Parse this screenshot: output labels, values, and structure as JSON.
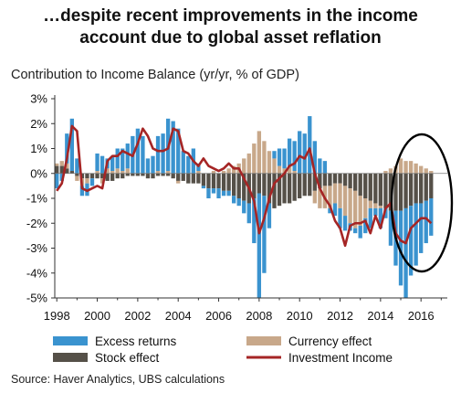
{
  "title_line1": "…despite recent improvements in the income",
  "title_line2": "account due to global asset reflation",
  "subtitle": "Contribution to Income Balance (yr/yr, % of GDP)",
  "source": "Source:  Haver Analytics, UBS calculations",
  "colors": {
    "excess_returns": "#3a93cf",
    "currency_effect": "#c8a88a",
    "stock_effect": "#555048",
    "investment_income": "#a52525",
    "ellipse": "#000000"
  },
  "chart_data": {
    "type": "bar",
    "stacked": true,
    "x_start": 1998.0,
    "x_step": 0.25,
    "ylim": [
      -5,
      3
    ],
    "yticks": [
      "3%",
      "2%",
      "1%",
      "0%",
      "-1%",
      "-2%",
      "-3%",
      "-4%",
      "-5%"
    ],
    "yticks_values": [
      3,
      2,
      1,
      0,
      -1,
      -2,
      -3,
      -4,
      -5
    ],
    "xticks": [
      "1998",
      "2000",
      "2002",
      "2004",
      "2006",
      "2008",
      "2010",
      "2012",
      "2014",
      "2016"
    ],
    "xticks_values": [
      1998,
      2000,
      2002,
      2004,
      2006,
      2008,
      2010,
      2012,
      2014,
      2016
    ],
    "legend": [
      "Excess returns",
      "Currency effect",
      "Stock effect",
      "Investment Income"
    ],
    "series": [
      {
        "name": "Excess returns",
        "kind": "bar",
        "values": [
          -0.6,
          -0.3,
          1.2,
          2.1,
          0.6,
          -0.4,
          -0.5,
          -0.3,
          0.7,
          0.7,
          0.4,
          0.6,
          0.8,
          0.9,
          1.0,
          1.5,
          1.8,
          1.5,
          0.6,
          0.7,
          1.4,
          1.6,
          2.1,
          2.1,
          1.8,
          0.9,
          0.7,
          1.0,
          0.3,
          -0.1,
          -0.4,
          -0.2,
          -0.4,
          -0.2,
          -0.2,
          -0.3,
          -0.3,
          -0.5,
          -0.8,
          -1.8,
          -4.2,
          -3.1,
          -1.0,
          0.3,
          0.7,
          0.8,
          1.1,
          1.2,
          1.7,
          1.6,
          2.3,
          1.3,
          0.6,
          0.5,
          -0.2,
          -0.5,
          -0.8,
          -0.6,
          -0.3,
          -0.2,
          -0.5,
          -0.6,
          -0.8,
          -0.3,
          -0.8,
          -0.4,
          -1.4,
          -2.2,
          -3.0,
          -3.6,
          -2.8,
          -2.5,
          -2.0,
          -1.7,
          -1.5
        ]
      },
      {
        "name": "Currency effect",
        "kind": "bar",
        "values": [
          0.1,
          0.2,
          0.2,
          0.0,
          -0.2,
          -0.3,
          -0.2,
          0.0,
          0.1,
          -0.2,
          0.2,
          0.1,
          0.2,
          0.1,
          0.2,
          0.0,
          0.0,
          0.0,
          0.0,
          0.0,
          0.1,
          0.0,
          0.1,
          0.0,
          -0.1,
          0.0,
          0.0,
          0.0,
          0.1,
          0.0,
          0.0,
          0.1,
          0.0,
          0.1,
          0.2,
          0.3,
          0.4,
          0.6,
          0.8,
          1.2,
          1.7,
          1.3,
          0.9,
          0.6,
          0.3,
          0.2,
          0.3,
          0.1,
          0.0,
          0.0,
          0.0,
          -0.5,
          -0.8,
          -0.9,
          -0.9,
          -0.8,
          -1.0,
          -1.2,
          -1.4,
          -1.5,
          -1.2,
          -0.8,
          -0.3,
          -0.2,
          -0.1,
          0.1,
          0.2,
          0.3,
          0.6,
          0.5,
          0.5,
          0.4,
          0.3,
          0.2,
          0.1
        ]
      },
      {
        "name": "Stock effect",
        "kind": "bar",
        "values": [
          0.3,
          0.3,
          0.2,
          0.1,
          -0.1,
          -0.2,
          -0.2,
          -0.2,
          -0.2,
          -0.2,
          -0.3,
          -0.3,
          -0.2,
          -0.2,
          -0.1,
          -0.1,
          -0.1,
          -0.1,
          -0.2,
          -0.2,
          -0.1,
          -0.1,
          -0.1,
          -0.2,
          -0.3,
          -0.3,
          -0.4,
          -0.4,
          -0.4,
          -0.5,
          -0.6,
          -0.6,
          -0.6,
          -0.7,
          -0.7,
          -0.9,
          -1.0,
          -1.1,
          -1.2,
          -1.0,
          -0.8,
          -0.9,
          -1.2,
          -1.4,
          -1.3,
          -1.2,
          -1.2,
          -1.1,
          -1.0,
          -0.9,
          -0.9,
          -0.7,
          -0.6,
          -0.5,
          -0.5,
          -0.4,
          -0.4,
          -0.5,
          -0.6,
          -0.7,
          -0.9,
          -1.0,
          -1.1,
          -1.2,
          -1.3,
          -1.4,
          -1.5,
          -1.5,
          -1.5,
          -1.4,
          -1.3,
          -1.2,
          -1.2,
          -1.1,
          -1.0
        ]
      },
      {
        "name": "Investment Income",
        "kind": "line",
        "values": [
          -0.7,
          -0.4,
          0.6,
          1.9,
          1.7,
          -0.6,
          -0.7,
          -0.6,
          -0.5,
          -0.6,
          0.5,
          0.7,
          0.7,
          0.9,
          0.8,
          0.7,
          1.2,
          1.8,
          1.5,
          1.0,
          0.9,
          0.9,
          1.0,
          1.8,
          1.7,
          0.9,
          0.8,
          0.5,
          0.3,
          0.6,
          0.3,
          0.2,
          0.1,
          0.2,
          0.4,
          0.2,
          0.2,
          -0.2,
          -0.6,
          -1.1,
          -2.4,
          -1.8,
          -1.0,
          -0.4,
          -0.2,
          0.0,
          0.3,
          0.4,
          0.7,
          0.6,
          1.0,
          0.0,
          -0.6,
          -1.0,
          -1.3,
          -1.9,
          -2.2,
          -2.9,
          -2.1,
          -2.0,
          -2.0,
          -1.9,
          -2.4,
          -1.7,
          -2.2,
          -1.4,
          -1.2,
          -2.4,
          -2.7,
          -2.8,
          -2.2,
          -2.0,
          -1.8,
          -1.8,
          -2.0
        ]
      }
    ]
  }
}
